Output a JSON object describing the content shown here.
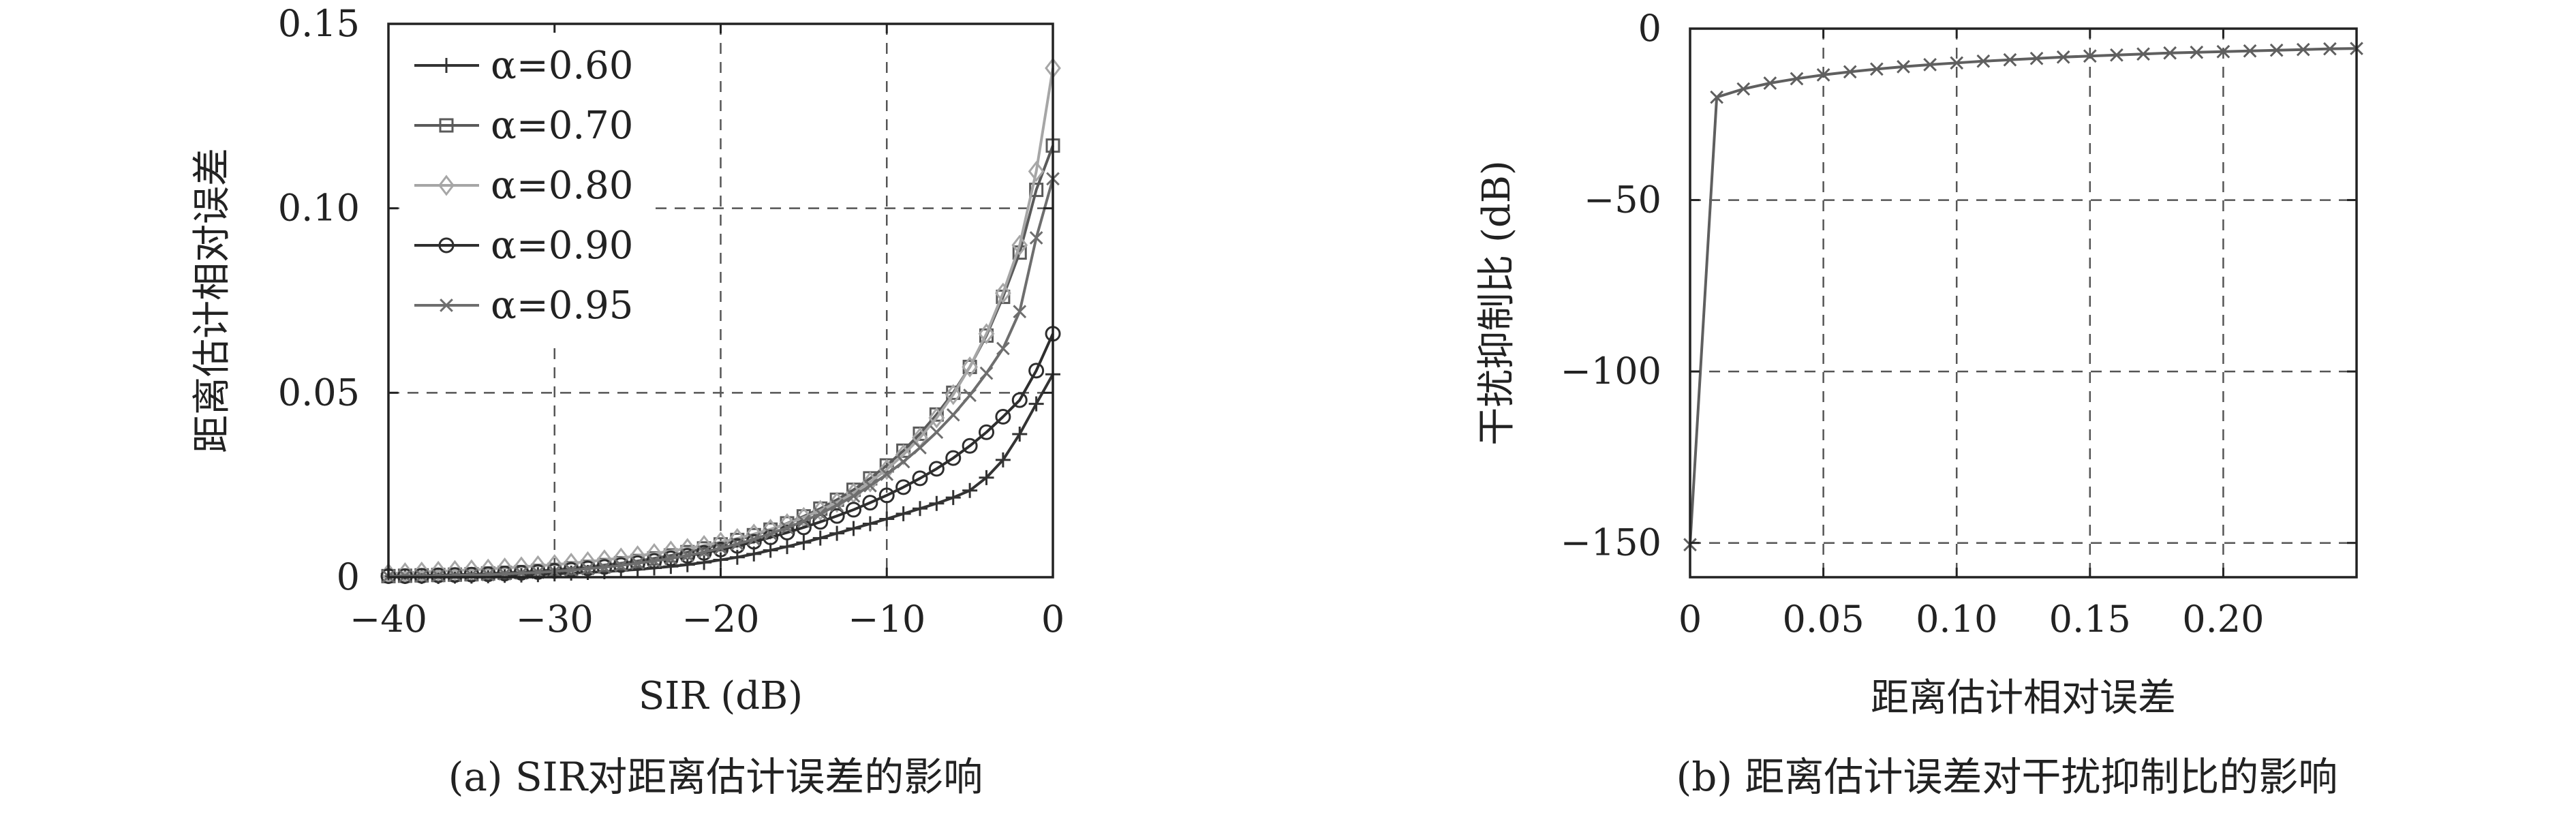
{
  "colors": {
    "axis": "#222222",
    "grid": "#555555",
    "series_alpha_060": "#333333",
    "series_alpha_070": "#5a5a5a",
    "series_alpha_080": "#a6a6a6",
    "series_alpha_090": "#2e2e2e",
    "series_alpha_095": "#6e6e6e",
    "series_b": "#5f5f5f"
  },
  "chart_data": [
    {
      "id": "a",
      "type": "line",
      "caption": "(a) SIR对距离估计误差的影响",
      "title": "",
      "xlabel": "SIR (dB)",
      "ylabel": "距离估计相对误差",
      "xlim": [
        -40,
        0
      ],
      "ylim": [
        0,
        0.15
      ],
      "xticks": [
        -40,
        -30,
        -20,
        -10,
        0
      ],
      "xtick_labels": [
        "−40",
        "−30",
        "−20",
        "−10",
        "0"
      ],
      "yticks": [
        0,
        0.05,
        0.1,
        0.15
      ],
      "ytick_labels": [
        "0",
        "0.05",
        "0.10",
        "0.15"
      ],
      "grid": true,
      "legend_position": "top-left",
      "x": [
        -40,
        -39,
        -38,
        -37,
        -36,
        -35,
        -34,
        -33,
        -32,
        -31,
        -30,
        -29,
        -28,
        -27,
        -26,
        -25,
        -24,
        -23,
        -22,
        -21,
        -20,
        -19,
        -18,
        -17,
        -16,
        -15,
        -14,
        -13,
        -12,
        -11,
        -10,
        -9,
        -8,
        -7,
        -6,
        -5,
        -4,
        -3,
        -2,
        -1,
        0
      ],
      "series": [
        {
          "name": "α=0.60",
          "marker": "plus",
          "color_key": "series_alpha_060",
          "values": [
            0.0002,
            0.0002,
            0.0002,
            0.0002,
            0.0003,
            0.0003,
            0.0004,
            0.0005,
            0.0006,
            0.0007,
            0.0009,
            0.0011,
            0.0013,
            0.0015,
            0.0018,
            0.0021,
            0.0025,
            0.0029,
            0.0034,
            0.004,
            0.0047,
            0.0054,
            0.0063,
            0.0073,
            0.0083,
            0.0094,
            0.0106,
            0.0119,
            0.0132,
            0.0145,
            0.0158,
            0.0172,
            0.0186,
            0.02,
            0.0216,
            0.0235,
            0.027,
            0.0318,
            0.0388,
            0.047,
            0.055
          ]
        },
        {
          "name": "α=0.70",
          "marker": "square",
          "color_key": "series_alpha_070",
          "values": [
            0.0003,
            0.0004,
            0.0005,
            0.0006,
            0.0007,
            0.0008,
            0.001,
            0.0012,
            0.0014,
            0.0017,
            0.002,
            0.0024,
            0.0028,
            0.0033,
            0.0038,
            0.0044,
            0.0051,
            0.0059,
            0.0068,
            0.0078,
            0.0089,
            0.0101,
            0.0114,
            0.0129,
            0.0146,
            0.0165,
            0.0186,
            0.021,
            0.0237,
            0.0268,
            0.0303,
            0.0343,
            0.0389,
            0.0441,
            0.05,
            0.057,
            0.0655,
            0.076,
            0.088,
            0.105,
            0.117
          ]
        },
        {
          "name": "α=0.80",
          "marker": "diamond",
          "color_key": "series_alpha_080",
          "values": [
            0.001,
            0.0012,
            0.0014,
            0.0016,
            0.0018,
            0.002,
            0.0022,
            0.0025,
            0.0028,
            0.0031,
            0.0034,
            0.0038,
            0.0042,
            0.0047,
            0.0052,
            0.0058,
            0.0064,
            0.0071,
            0.0078,
            0.0086,
            0.0095,
            0.0105,
            0.0117,
            0.013,
            0.0145,
            0.0162,
            0.0181,
            0.0203,
            0.0228,
            0.0258,
            0.0292,
            0.0332,
            0.0378,
            0.0432,
            0.0495,
            0.057,
            0.066,
            0.077,
            0.09,
            0.11,
            0.138
          ]
        },
        {
          "name": "α=0.90",
          "marker": "circle",
          "color_key": "series_alpha_090",
          "values": [
            0.0003,
            0.0003,
            0.0004,
            0.0005,
            0.0006,
            0.0007,
            0.0008,
            0.001,
            0.0012,
            0.0014,
            0.0017,
            0.002,
            0.0024,
            0.0028,
            0.0033,
            0.0038,
            0.0044,
            0.0051,
            0.0058,
            0.0066,
            0.0075,
            0.0085,
            0.0096,
            0.0108,
            0.0121,
            0.0135,
            0.015,
            0.0166,
            0.0183,
            0.0202,
            0.0222,
            0.0244,
            0.0268,
            0.0294,
            0.0323,
            0.0356,
            0.0393,
            0.0435,
            0.048,
            0.056,
            0.066
          ]
        },
        {
          "name": "α=0.95",
          "marker": "x",
          "color_key": "series_alpha_095",
          "values": [
            0.0002,
            0.0003,
            0.0003,
            0.0004,
            0.0005,
            0.0006,
            0.0007,
            0.0009,
            0.0011,
            0.0013,
            0.0016,
            0.0019,
            0.0023,
            0.0027,
            0.0032,
            0.0038,
            0.0044,
            0.0051,
            0.0059,
            0.0068,
            0.0079,
            0.009,
            0.0103,
            0.0118,
            0.0134,
            0.0152,
            0.0172,
            0.0195,
            0.022,
            0.0248,
            0.0279,
            0.0313,
            0.0351,
            0.0393,
            0.044,
            0.0493,
            0.0553,
            0.062,
            0.072,
            0.092,
            0.108
          ]
        }
      ]
    },
    {
      "id": "b",
      "type": "line",
      "caption": "(b) 距离估计误差对干扰抑制比的影响",
      "title": "",
      "xlabel": "距离估计相对误差",
      "ylabel": "干扰抑制比 (dB)",
      "xlim": [
        0,
        0.25
      ],
      "ylim": [
        -160,
        0
      ],
      "xticks": [
        0,
        0.05,
        0.1,
        0.15,
        0.2
      ],
      "xtick_labels": [
        "0",
        "0.05",
        "0.10",
        "0.15",
        "0.20"
      ],
      "yticks": [
        0,
        -50,
        -100,
        -150
      ],
      "ytick_labels": [
        "0",
        "−50",
        "−100",
        "−150"
      ],
      "grid": true,
      "x": [
        0,
        0.01,
        0.02,
        0.03,
        0.04,
        0.05,
        0.06,
        0.07,
        0.08,
        0.09,
        0.1,
        0.11,
        0.12,
        0.13,
        0.14,
        0.15,
        0.16,
        0.17,
        0.18,
        0.19,
        0.2,
        0.21,
        0.22,
        0.23,
        0.24,
        0.25
      ],
      "series": [
        {
          "marker": "x",
          "color_key": "series_b",
          "values": [
            -150.5,
            -20.0,
            -17.6,
            -15.9,
            -14.6,
            -13.5,
            -12.6,
            -11.8,
            -11.1,
            -10.5,
            -10.0,
            -9.5,
            -9.1,
            -8.7,
            -8.3,
            -8.0,
            -7.7,
            -7.4,
            -7.1,
            -6.9,
            -6.7,
            -6.5,
            -6.3,
            -6.1,
            -5.9,
            -5.8
          ]
        }
      ]
    }
  ]
}
